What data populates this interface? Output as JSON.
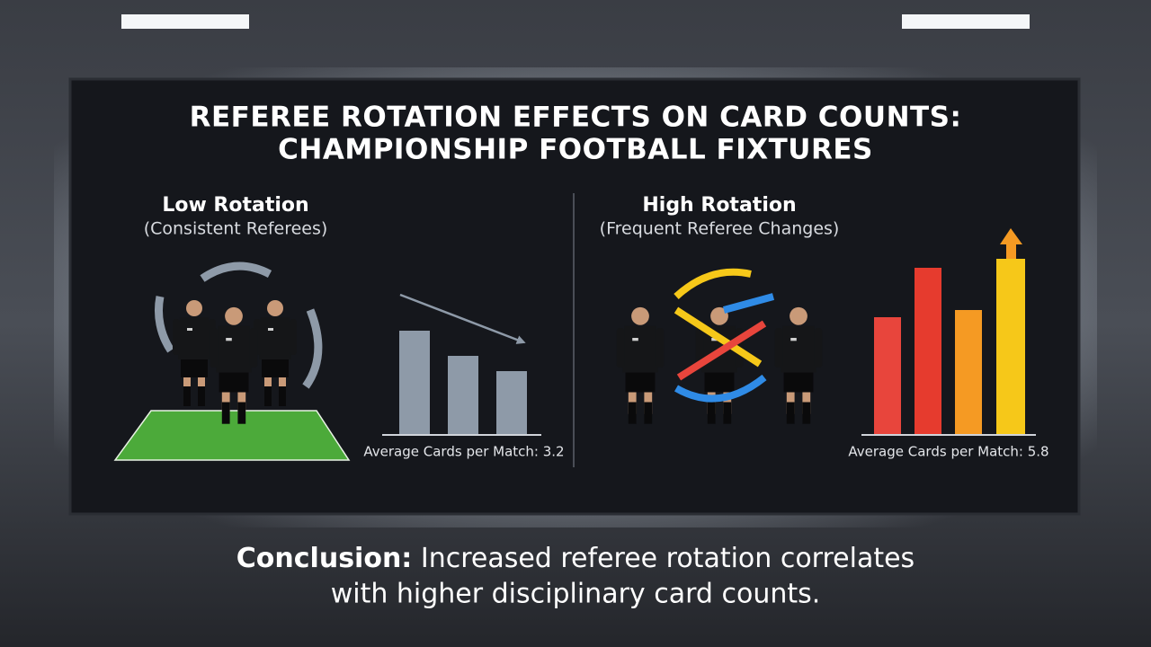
{
  "title": {
    "lines": [
      "REFEREE ROTATION EFFECTS ON CARD COUNTS:",
      "CHAMPIONSHIP FOOTBALL FIXTURES"
    ]
  },
  "panels": [
    {
      "heading": "Low Rotation",
      "subheading": "(Consistent Referees)",
      "caption": "Average Cards per Match: 3.2"
    },
    {
      "heading": "High Rotation",
      "subheading": "(Frequent Referee Changes)",
      "caption": "Average Cards per Match: 5.8"
    }
  ],
  "conclusion": {
    "label": "Conclusion:",
    "lines": [
      "Increased referee rotation correlates",
      "with higher disciplinary card counts."
    ]
  }
}
